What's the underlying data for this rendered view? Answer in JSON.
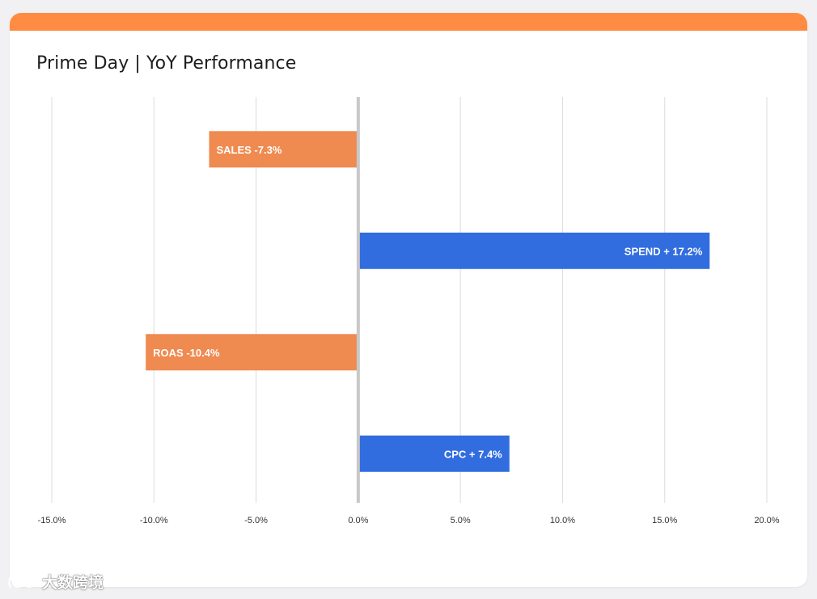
{
  "card": {
    "accent_color": "#ff8c42"
  },
  "chart_data": {
    "type": "bar",
    "orientation": "horizontal",
    "title": "Prime Day | YoY Performance",
    "categories": [
      "SALES",
      "SPEND",
      "ROAS",
      "CPC"
    ],
    "values": [
      -7.3,
      17.2,
      -10.4,
      7.4
    ],
    "bar_labels": [
      "SALES -7.3%",
      "SPEND + 17.2%",
      "ROAS -10.4%",
      "CPC + 7.4%"
    ],
    "colors": {
      "negative": "#ef8a50",
      "positive": "#316ddf",
      "gridline": "#dcdcdc",
      "zero_line": "#c8c8c8"
    },
    "xlim": [
      -15,
      20
    ],
    "xticks": [
      -15,
      -10,
      -5,
      0,
      5,
      10,
      15,
      20
    ],
    "xtick_labels": [
      "-15.0%",
      "-10.0%",
      "-5.0%",
      "0.0%",
      "5.0%",
      "10.0%",
      "15.0%",
      "20.0%"
    ],
    "grid": true,
    "xlabel": "",
    "ylabel": ""
  },
  "watermark": {
    "text": "大数跨境",
    "icon": "brand-logo-icon"
  }
}
